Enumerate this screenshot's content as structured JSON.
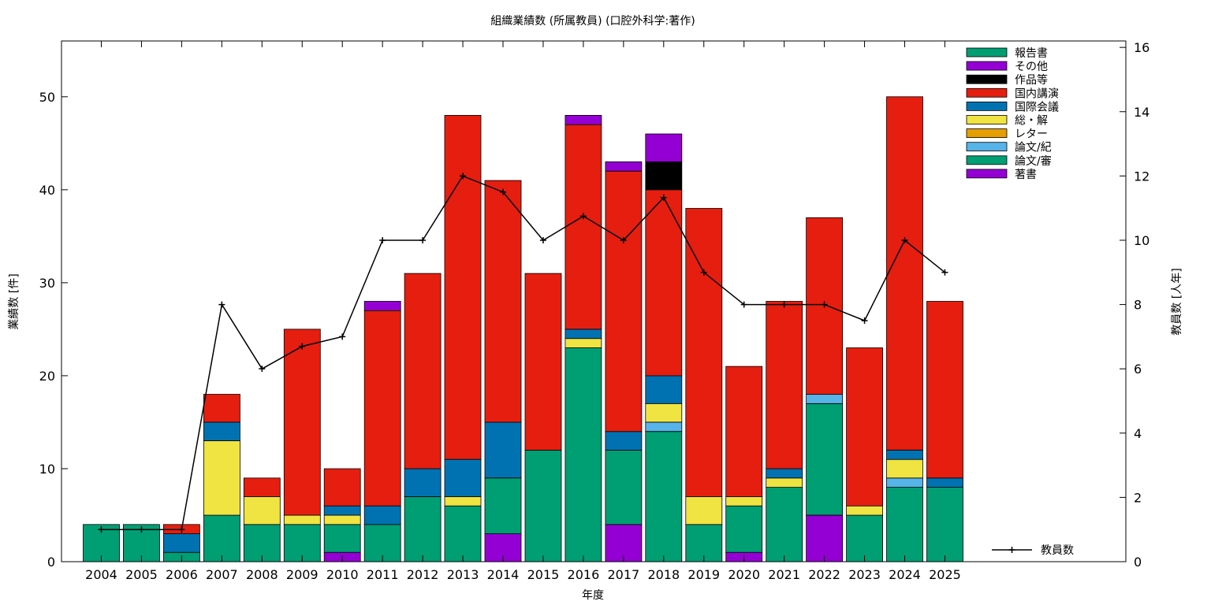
{
  "chart_data": {
    "type": "bar",
    "stacked": true,
    "title": "組織業績数 (所属教員) (口腔外科学:著作)",
    "xlabel": "年度",
    "ylabel": "業績数 [件]",
    "y2label": "教員数 [人年]",
    "ylim": [
      0,
      56
    ],
    "y2lim": [
      0,
      16.2
    ],
    "yticks": [
      0,
      10,
      20,
      30,
      40,
      50
    ],
    "y2ticks": [
      0,
      2,
      4,
      6,
      8,
      10,
      12,
      14,
      16
    ],
    "grid": false,
    "legend_position": "top-right",
    "categories": [
      "2004",
      "2005",
      "2006",
      "2007",
      "2008",
      "2009",
      "2010",
      "2011",
      "2012",
      "2013",
      "2014",
      "2015",
      "2016",
      "2017",
      "2018",
      "2019",
      "2020",
      "2021",
      "2022",
      "2023",
      "2024",
      "2025"
    ],
    "series": [
      {
        "name": "著書",
        "color": "#9400D3",
        "values": [
          0,
          0,
          0,
          0,
          0,
          0,
          1,
          0,
          0,
          0,
          3,
          0,
          0,
          4,
          0,
          0,
          1,
          0,
          5,
          0,
          0,
          0
        ]
      },
      {
        "name": "論文/審",
        "color": "#009E73",
        "values": [
          4,
          4,
          1,
          5,
          4,
          4,
          3,
          4,
          7,
          6,
          6,
          12,
          23,
          8,
          14,
          4,
          5,
          8,
          12,
          5,
          8,
          8
        ]
      },
      {
        "name": "論文/紀",
        "color": "#56B4E9",
        "values": [
          0,
          0,
          0,
          0,
          0,
          0,
          0,
          0,
          0,
          0,
          0,
          0,
          0,
          0,
          1,
          0,
          0,
          0,
          1,
          0,
          1,
          0
        ]
      },
      {
        "name": "レター",
        "color": "#E69F00",
        "values": [
          0,
          0,
          0,
          0,
          0,
          0,
          0,
          0,
          0,
          0,
          0,
          0,
          0,
          0,
          0,
          0,
          0,
          0,
          0,
          0,
          0,
          0
        ]
      },
      {
        "name": "総・解",
        "color": "#F0E442",
        "values": [
          0,
          0,
          0,
          8,
          3,
          1,
          1,
          0,
          0,
          1,
          0,
          0,
          1,
          0,
          2,
          3,
          1,
          1,
          0,
          1,
          2,
          0
        ]
      },
      {
        "name": "国際会議",
        "color": "#0072B2",
        "values": [
          0,
          0,
          2,
          2,
          0,
          0,
          1,
          2,
          3,
          4,
          6,
          0,
          1,
          2,
          3,
          0,
          0,
          1,
          0,
          0,
          1,
          1
        ]
      },
      {
        "name": "国内講演",
        "color": "#E51E10",
        "values": [
          0,
          0,
          1,
          3,
          2,
          20,
          4,
          21,
          21,
          37,
          26,
          19,
          22,
          28,
          20,
          31,
          14,
          18,
          19,
          17,
          38,
          19
        ]
      },
      {
        "name": "作品等",
        "color": "#000000",
        "values": [
          0,
          0,
          0,
          0,
          0,
          0,
          0,
          0,
          0,
          0,
          0,
          0,
          0,
          0,
          3,
          0,
          0,
          0,
          0,
          0,
          0,
          0
        ]
      },
      {
        "name": "その他",
        "color": "#9400D3",
        "values": [
          0,
          0,
          0,
          0,
          0,
          0,
          0,
          1,
          0,
          0,
          0,
          0,
          1,
          1,
          3,
          0,
          0,
          0,
          0,
          0,
          0,
          0
        ]
      },
      {
        "name": "報告書",
        "color": "#009E73",
        "values": [
          0,
          0,
          0,
          0,
          0,
          0,
          0,
          0,
          0,
          0,
          0,
          0,
          0,
          0,
          0,
          0,
          0,
          0,
          0,
          0,
          0,
          0
        ]
      }
    ],
    "legend_order": [
      "報告書",
      "その他",
      "作品等",
      "国内講演",
      "国際会議",
      "総・解",
      "レター",
      "論文/紀",
      "論文/審",
      "著書"
    ],
    "line_series": {
      "name": "教員数",
      "axis": "y2",
      "color": "#000000",
      "values": [
        1,
        1,
        1,
        8,
        6,
        6.7,
        7,
        10,
        10,
        12,
        11.5,
        10,
        10.75,
        10,
        11.33,
        9,
        8,
        8,
        8,
        7.5,
        10,
        9
      ]
    }
  }
}
